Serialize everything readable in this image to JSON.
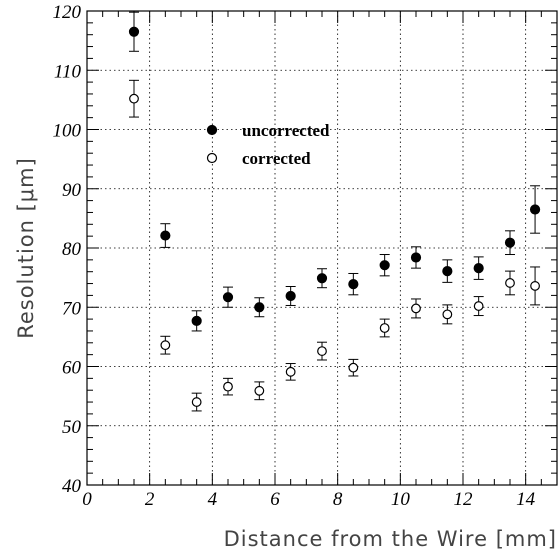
{
  "chart_data": {
    "type": "scatter",
    "xlabel": "Distance from the Wire [mm]",
    "ylabel": "Resolution [μm]",
    "xlim": [
      0,
      15
    ],
    "ylim": [
      40,
      120
    ],
    "xticks": [
      0,
      2,
      4,
      6,
      8,
      10,
      12,
      14
    ],
    "yticks": [
      40,
      50,
      60,
      70,
      80,
      90,
      100,
      110,
      120
    ],
    "grid": true,
    "legend_position": "upper-middle",
    "series": [
      {
        "name": "uncorrected",
        "marker": "filled-circle",
        "x": [
          1.5,
          2.5,
          3.5,
          4.5,
          5.5,
          6.5,
          7.5,
          8.5,
          9.5,
          10.5,
          11.5,
          12.5,
          13.5,
          14.3
        ],
        "y": [
          116.5,
          82.1,
          67.7,
          71.7,
          70.0,
          71.9,
          74.9,
          73.9,
          77.1,
          78.4,
          76.1,
          76.6,
          80.9,
          86.5
        ],
        "err": [
          3.3,
          2.0,
          1.7,
          1.7,
          1.6,
          1.6,
          1.6,
          1.8,
          1.8,
          1.8,
          1.9,
          1.9,
          2.0,
          4.0
        ]
      },
      {
        "name": "corrected",
        "marker": "open-circle",
        "x": [
          1.5,
          2.5,
          3.5,
          4.5,
          5.5,
          6.5,
          7.5,
          8.5,
          9.5,
          10.5,
          11.5,
          12.5,
          13.5,
          14.3
        ],
        "y": [
          105.2,
          63.6,
          54.0,
          56.6,
          55.9,
          59.1,
          62.6,
          59.8,
          66.5,
          69.8,
          68.8,
          70.2,
          74.1,
          73.6
        ],
        "err": [
          3.1,
          1.5,
          1.5,
          1.4,
          1.5,
          1.4,
          1.5,
          1.4,
          1.5,
          1.6,
          1.6,
          1.6,
          2.0,
          3.2
        ]
      }
    ]
  }
}
